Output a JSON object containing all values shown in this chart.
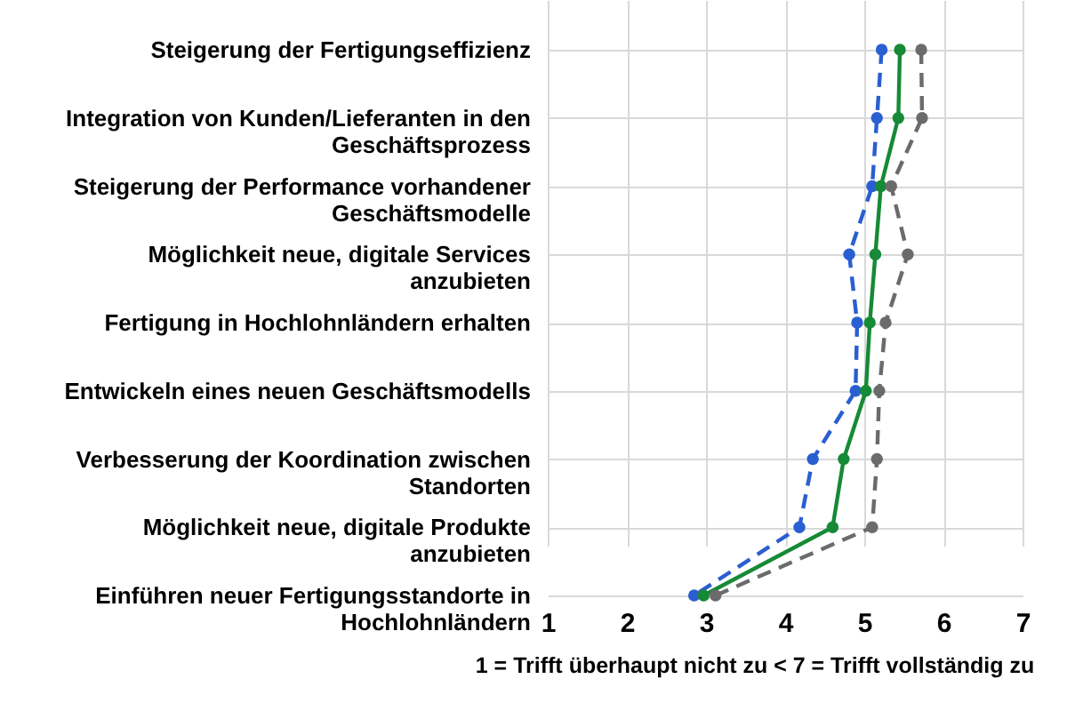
{
  "chart_data": {
    "type": "line",
    "orientation": "horizontal",
    "categories": [
      "Steigerung der Fertigungseffizienz",
      "Integration von Kunden/Lieferanten in den Geschäftsprozess",
      "Steigerung der Performance vorhandener Geschäftsmodelle",
      "Möglichkeit neue, digitale Services anzubieten",
      "Fertigung in Hochlohnländern erhalten",
      "Entwickeln eines neuen Geschäftsmodells",
      "Verbesserung der Koordination zwischen Standorten",
      "Möglichkeit neue, digitale Produkte anzubieten",
      "Einführen neuer Fertigungsstandorte in Hochlohnländern"
    ],
    "series": [
      {
        "color": "#2a5fd1",
        "line_style": "dashed",
        "values": [
          5.22,
          5.16,
          5.1,
          4.81,
          4.91,
          4.89,
          4.35,
          4.18,
          2.85
        ]
      },
      {
        "color": "#168a36",
        "line_style": "solid",
        "values": [
          5.45,
          5.43,
          5.21,
          5.14,
          5.07,
          5.02,
          4.74,
          4.6,
          2.97
        ]
      },
      {
        "color": "#6b6b6b",
        "line_style": "dashed",
        "values": [
          5.72,
          5.73,
          5.34,
          5.55,
          5.27,
          5.19,
          5.16,
          5.1,
          3.12
        ]
      }
    ],
    "xlabel": "1 = Trifft überhaupt nicht zu < 7 = Trifft vollständig zu",
    "xlim": [
      1,
      7
    ],
    "xticks": [
      1,
      2,
      3,
      4,
      5,
      6,
      7
    ],
    "grid": true,
    "marker": "circle"
  }
}
